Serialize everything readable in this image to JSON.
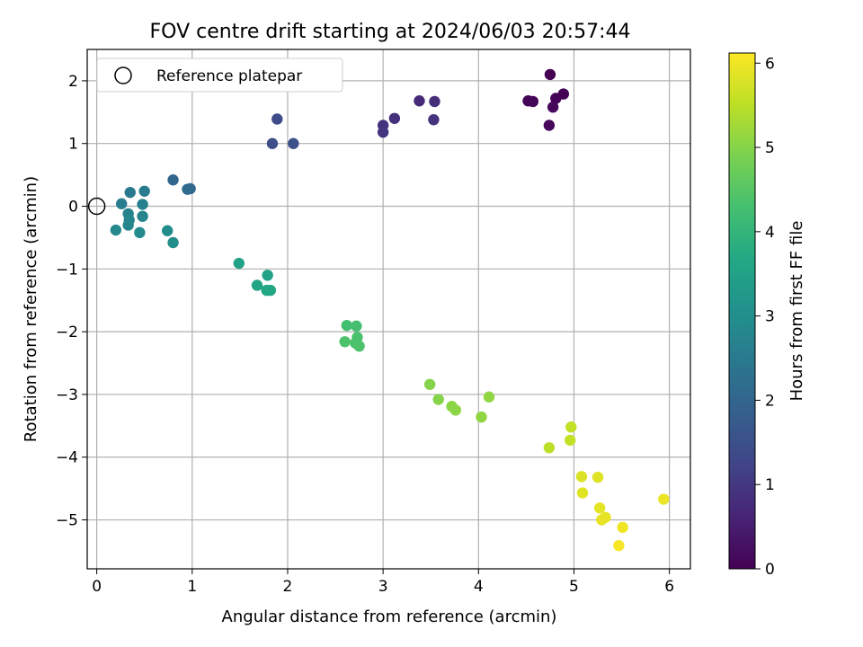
{
  "chart_data": {
    "type": "scatter",
    "title": "FOV centre drift starting at 2024/06/03 20:57:44",
    "xlabel": "Angular distance from reference (arcmin)",
    "ylabel": "Rotation from reference (arcmin)",
    "xlim": [
      -0.1,
      6.22
    ],
    "ylim": [
      -5.78,
      2.5
    ],
    "x_ticks": [
      0,
      1,
      2,
      3,
      4,
      5,
      6
    ],
    "y_ticks": [
      -5,
      -4,
      -3,
      -2,
      -1,
      0,
      1,
      2
    ],
    "grid": true,
    "legend": {
      "placement": "top-left",
      "entries": [
        {
          "label": "Reference platepar",
          "marker": "open-circle"
        }
      ]
    },
    "reference_point": {
      "x": 0,
      "y": 0
    },
    "colorbar": {
      "label": "Hours from first FF file",
      "range": [
        0,
        6.12
      ],
      "ticks": [
        0,
        1,
        2,
        3,
        4,
        5,
        6
      ],
      "colormap": "viridis"
    },
    "points": [
      {
        "x": 4.75,
        "y": 2.1,
        "c": 0.0
      },
      {
        "x": 4.89,
        "y": 1.79,
        "c": 0.02
      },
      {
        "x": 4.81,
        "y": 1.72,
        "c": 0.04
      },
      {
        "x": 4.52,
        "y": 1.68,
        "c": 0.06
      },
      {
        "x": 4.57,
        "y": 1.67,
        "c": 0.08
      },
      {
        "x": 4.78,
        "y": 1.58,
        "c": 0.1
      },
      {
        "x": 4.74,
        "y": 1.29,
        "c": 0.12
      },
      {
        "x": 3.38,
        "y": 1.68,
        "c": 0.75
      },
      {
        "x": 3.54,
        "y": 1.67,
        "c": 0.8
      },
      {
        "x": 3.12,
        "y": 1.4,
        "c": 0.85
      },
      {
        "x": 3.53,
        "y": 1.38,
        "c": 0.9
      },
      {
        "x": 3.0,
        "y": 1.29,
        "c": 0.92
      },
      {
        "x": 3.0,
        "y": 1.18,
        "c": 0.95
      },
      {
        "x": 1.89,
        "y": 1.39,
        "c": 1.4
      },
      {
        "x": 1.84,
        "y": 1.0,
        "c": 1.45
      },
      {
        "x": 2.06,
        "y": 1.0,
        "c": 1.5
      },
      {
        "x": 0.8,
        "y": 0.42,
        "c": 2.0
      },
      {
        "x": 0.98,
        "y": 0.28,
        "c": 2.05
      },
      {
        "x": 0.95,
        "y": 0.27,
        "c": 2.1
      },
      {
        "x": 0.35,
        "y": 0.22,
        "c": 2.5
      },
      {
        "x": 0.5,
        "y": 0.24,
        "c": 2.55
      },
      {
        "x": 0.26,
        "y": 0.04,
        "c": 2.6
      },
      {
        "x": 0.48,
        "y": 0.03,
        "c": 2.65
      },
      {
        "x": 0.33,
        "y": -0.12,
        "c": 2.7
      },
      {
        "x": 0.48,
        "y": -0.16,
        "c": 2.75
      },
      {
        "x": 0.34,
        "y": -0.22,
        "c": 2.8
      },
      {
        "x": 0.33,
        "y": -0.3,
        "c": 2.8
      },
      {
        "x": 0.2,
        "y": -0.38,
        "c": 2.85
      },
      {
        "x": 0.45,
        "y": -0.42,
        "c": 2.9
      },
      {
        "x": 0.74,
        "y": -0.39,
        "c": 2.95
      },
      {
        "x": 0.8,
        "y": -0.58,
        "c": 2.95
      },
      {
        "x": 1.49,
        "y": -0.91,
        "c": 3.5
      },
      {
        "x": 1.79,
        "y": -1.1,
        "c": 3.55
      },
      {
        "x": 1.68,
        "y": -1.26,
        "c": 3.6
      },
      {
        "x": 1.78,
        "y": -1.34,
        "c": 3.65
      },
      {
        "x": 1.82,
        "y": -1.34,
        "c": 3.65
      },
      {
        "x": 2.62,
        "y": -1.9,
        "c": 4.25
      },
      {
        "x": 2.72,
        "y": -1.91,
        "c": 4.3
      },
      {
        "x": 2.73,
        "y": -2.09,
        "c": 4.35
      },
      {
        "x": 2.71,
        "y": -2.18,
        "c": 4.35
      },
      {
        "x": 2.6,
        "y": -2.16,
        "c": 4.4
      },
      {
        "x": 2.75,
        "y": -2.23,
        "c": 4.4
      },
      {
        "x": 3.49,
        "y": -2.84,
        "c": 5.0
      },
      {
        "x": 3.58,
        "y": -3.08,
        "c": 5.0
      },
      {
        "x": 3.72,
        "y": -3.19,
        "c": 5.05
      },
      {
        "x": 3.76,
        "y": -3.25,
        "c": 5.05
      },
      {
        "x": 4.11,
        "y": -3.04,
        "c": 5.1
      },
      {
        "x": 4.03,
        "y": -3.36,
        "c": 5.1
      },
      {
        "x": 4.74,
        "y": -3.85,
        "c": 5.5
      },
      {
        "x": 4.97,
        "y": -3.52,
        "c": 5.55
      },
      {
        "x": 4.96,
        "y": -3.73,
        "c": 5.55
      },
      {
        "x": 5.08,
        "y": -4.31,
        "c": 5.8
      },
      {
        "x": 5.25,
        "y": -4.32,
        "c": 5.82
      },
      {
        "x": 5.09,
        "y": -4.57,
        "c": 5.85
      },
      {
        "x": 5.27,
        "y": -4.81,
        "c": 5.88
      },
      {
        "x": 5.33,
        "y": -4.96,
        "c": 5.9
      },
      {
        "x": 5.29,
        "y": -5.0,
        "c": 5.92
      },
      {
        "x": 5.94,
        "y": -4.67,
        "c": 5.95
      },
      {
        "x": 5.51,
        "y": -5.12,
        "c": 6.0
      },
      {
        "x": 5.47,
        "y": -5.41,
        "c": 6.05
      }
    ]
  }
}
